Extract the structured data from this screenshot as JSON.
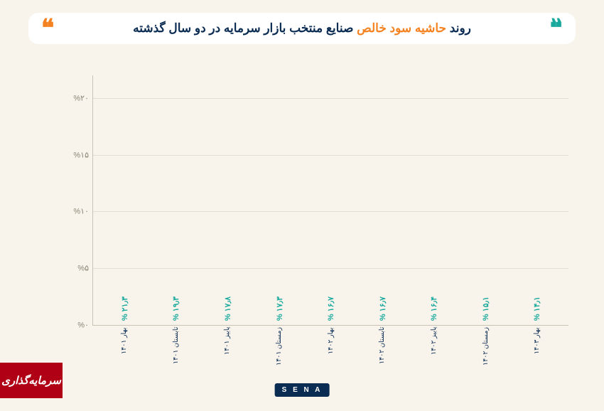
{
  "title": {
    "pre": "روند ",
    "hl": "حاشیه سود خالص",
    "post": " صنایع منتخب بازار سرمایه در دو سال گذشته"
  },
  "chart": {
    "type": "bar",
    "bar_color": "#1aa99d",
    "value_color": "#1aa99d",
    "grid_color": "#e4dfd3",
    "axis_color": "#c9c3b6",
    "bg": "#f8f4ec",
    "ylim": [
      0,
      22
    ],
    "yticks": [
      {
        "v": 0,
        "label": "%۰"
      },
      {
        "v": 5,
        "label": "%۵"
      },
      {
        "v": 10,
        "label": "%۱۰"
      },
      {
        "v": 15,
        "label": "%۱۵"
      },
      {
        "v": 20,
        "label": "%۲۰"
      }
    ],
    "bars": [
      {
        "label": "بهار ۱۴۰۱",
        "value": 21.3,
        "vlabel": "% ۲۱٫۳"
      },
      {
        "label": "تابستان ۱۴۰۱",
        "value": 19.3,
        "vlabel": "% ۱۹٫۳"
      },
      {
        "label": "پاییز ۱۴۰۱",
        "value": 17.8,
        "vlabel": "% ۱۷٫۸"
      },
      {
        "label": "زمستان ۱۴۰۱",
        "value": 17.3,
        "vlabel": "% ۱۷٫۳"
      },
      {
        "label": "بهار ۱۴۰۲",
        "value": 16.7,
        "vlabel": "% ۱۶٫۷"
      },
      {
        "label": "تابستان ۱۴۰۲",
        "value": 16.7,
        "vlabel": "% ۱۶٫۷"
      },
      {
        "label": "پاییز ۱۴۰۲",
        "value": 16.4,
        "vlabel": "% ۱۶٫۴"
      },
      {
        "label": "زمستان ۱۴۰۲",
        "value": 15.1,
        "vlabel": "% ۱۵٫۱"
      },
      {
        "label": "بهار ۱۴۰۳",
        "value": 14.1,
        "vlabel": "% ۱۴٫۱"
      }
    ]
  },
  "footer": {
    "sena": "S E N A",
    "watermark": "سرمایه‌گذاری"
  }
}
